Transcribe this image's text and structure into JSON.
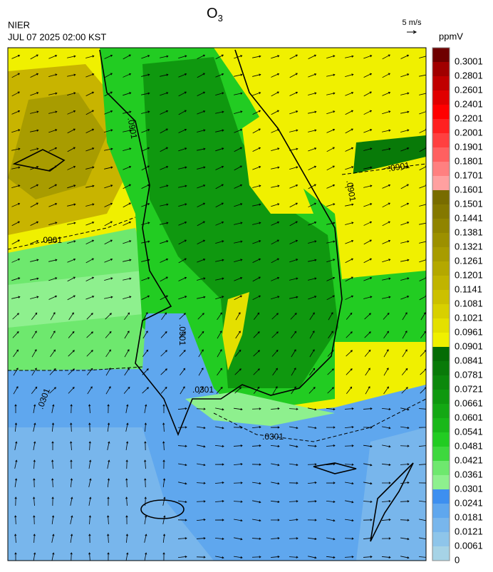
{
  "header": {
    "title": {
      "text": "O",
      "subscript": "3"
    },
    "source": "NIER",
    "time": "JUL 07 2025 02:00 KST"
  },
  "vector_scale": {
    "label": "5 m/s"
  },
  "colorbar": {
    "unit": "ppmV",
    "labels": [
      "0.3001",
      "0.2801",
      "0.2601",
      "0.2401",
      "0.2201",
      "0.2001",
      "0.1901",
      "0.1801",
      "0.1701",
      "0.1601",
      "0.1501",
      "0.1441",
      "0.1381",
      "0.1321",
      "0.1261",
      "0.1201",
      "0.1141",
      "0.1081",
      "0.1021",
      "0.0961",
      "0.0901",
      "0.0841",
      "0.0781",
      "0.0721",
      "0.0661",
      "0.0601",
      "0.0541",
      "0.0481",
      "0.0421",
      "0.0361",
      "0.0301",
      "0.0241",
      "0.0181",
      "0.0121",
      "0.0061",
      "0"
    ],
    "colors": [
      "#6e0000",
      "#a00000",
      "#c00000",
      "#e00000",
      "#ff0000",
      "#ff2020",
      "#ff4040",
      "#ff6060",
      "#ff8080",
      "#ffa0a0",
      "#786c00",
      "#847800",
      "#908400",
      "#9c9000",
      "#a89c00",
      "#b4a800",
      "#c0b400",
      "#ccc000",
      "#d8d000",
      "#e4e000",
      "#f0f000",
      "#056c05",
      "#087a08",
      "#0b880b",
      "#0f980f",
      "#14a814",
      "#19b819",
      "#22cc22",
      "#3ed83e",
      "#6ee86e",
      "#8ef08e",
      "#3d8ff0",
      "#5fa7ee",
      "#78b6ec",
      "#8ec5ea",
      "#a6d3e6"
    ]
  },
  "contour_labels": [
    ".0901",
    ".0901",
    ".0901",
    ".0901",
    ".0301",
    ".0301",
    ".0301",
    ".0901"
  ]
}
